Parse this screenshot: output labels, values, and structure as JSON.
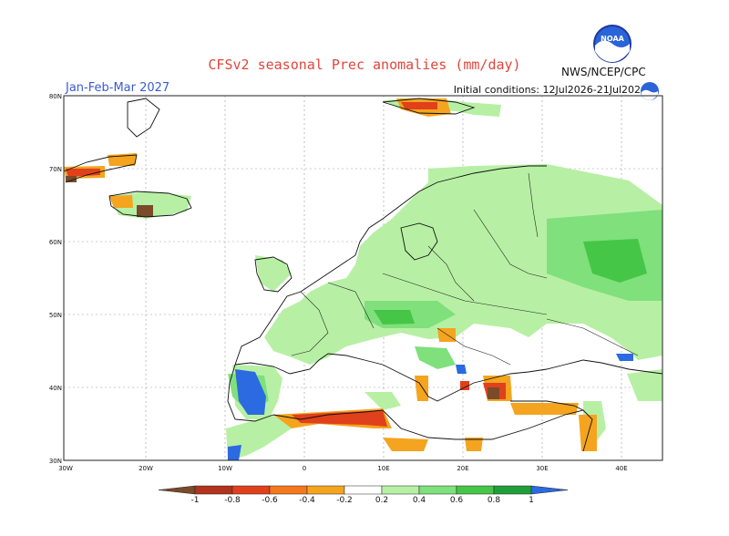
{
  "header": {
    "title": "CFSv2 seasonal Prec anomalies (mm/day)",
    "period": "Jan-Feb-Mar 2027",
    "init": "Initial conditions: 12Jul2026-21Jul2026",
    "agency": "NWS/NCEP/CPC"
  },
  "logos": {
    "noaa": "noaa-logo-icon"
  },
  "map": {
    "lat_labels": [
      "80N",
      "70N",
      "60N",
      "50N",
      "40N",
      "30N"
    ],
    "lon_labels": [
      "30W",
      "20W",
      "10W",
      "0",
      "10E",
      "20E",
      "30E",
      "40E"
    ]
  },
  "colorbar": {
    "labels": [
      "-1",
      "-0.8",
      "-0.6",
      "-0.4",
      "-0.2",
      "0.2",
      "0.4",
      "0.6",
      "0.8",
      "1"
    ],
    "colors": [
      "#7a4a2a",
      "#b2331e",
      "#e0401c",
      "#f3781e",
      "#f4a41e",
      "#ffffff",
      "#b7f0a4",
      "#7fe07c",
      "#46c646",
      "#1f9f3a",
      "#2b6ae0"
    ]
  }
}
